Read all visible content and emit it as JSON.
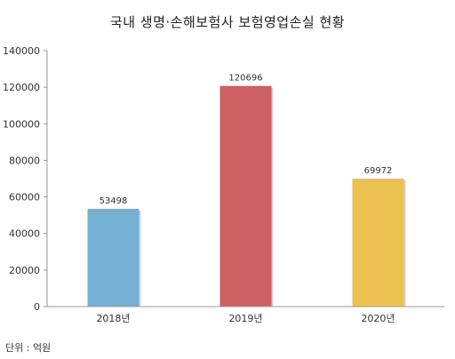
{
  "chart_data": {
    "type": "bar",
    "title": "국내 생명·손해보험사 보험영업손실 현황",
    "categories": [
      "2018년",
      "2019년",
      "2020년"
    ],
    "values": [
      53498,
      120696,
      69972
    ],
    "data_labels": [
      "53498",
      "120696",
      "69972"
    ],
    "colors": [
      "#74b1d3",
      "#cc6062",
      "#ebc24f"
    ],
    "ylim": [
      0,
      140000
    ],
    "yticks": [
      0,
      20000,
      40000,
      60000,
      80000,
      100000,
      120000,
      140000
    ],
    "ytick_labels": [
      "0",
      "20000",
      "40000",
      "60000",
      "80000",
      "100000",
      "120000",
      "140000"
    ],
    "xlabel": "",
    "ylabel": "",
    "grid": false,
    "unit_note": "단위 : 억원"
  }
}
